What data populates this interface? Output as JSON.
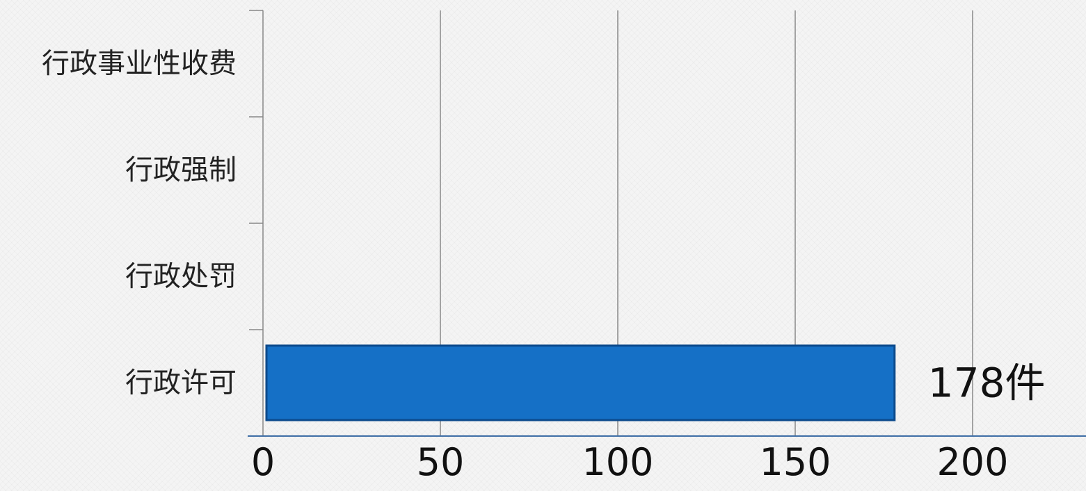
{
  "chart_data": {
    "type": "bar",
    "orientation": "horizontal",
    "categories": [
      "行政事业性收费",
      "行政强制",
      "行政处罚",
      "行政许可"
    ],
    "values": [
      0,
      0,
      0,
      178
    ],
    "data_labels": [
      "",
      "",
      "",
      "178件"
    ],
    "x_ticks": [
      "0",
      "50",
      "100",
      "150",
      "200"
    ],
    "xlim": [
      0,
      230
    ],
    "grid": true,
    "colors": {
      "bar": "#1570c6",
      "bar_border": "#0c4a8c",
      "grid": "#888888",
      "axis": "#3e6ea6"
    }
  }
}
